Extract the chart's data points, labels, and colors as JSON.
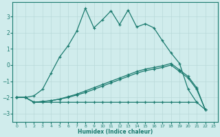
{
  "xlabel": "Humidex (Indice chaleur)",
  "background_color": "#d0ecec",
  "grid_color": "#b8d8d8",
  "line_color": "#1a7a6e",
  "xlim": [
    -0.5,
    23.5
  ],
  "ylim": [
    -3.5,
    3.9
  ],
  "yticks": [
    -3,
    -2,
    -1,
    0,
    1,
    2,
    3
  ],
  "xticks": [
    0,
    1,
    2,
    3,
    4,
    5,
    6,
    7,
    8,
    9,
    10,
    11,
    12,
    13,
    14,
    15,
    16,
    17,
    18,
    19,
    20,
    21,
    22,
    23
  ],
  "s1_x": [
    0,
    1,
    2,
    3,
    4,
    5,
    6,
    7,
    8,
    9,
    10,
    11,
    12,
    13,
    14,
    15,
    16,
    17,
    18,
    19,
    20,
    21
  ],
  "s1_y": [
    -2.0,
    -2.0,
    -1.9,
    -1.5,
    -0.5,
    0.5,
    1.2,
    2.1,
    3.5,
    2.3,
    2.8,
    3.35,
    2.5,
    3.4,
    2.35,
    2.55,
    2.3,
    1.5,
    0.75,
    0.1,
    -1.5,
    -2.3
  ],
  "s2_x": [
    0,
    1,
    2,
    3,
    4,
    5,
    6,
    7,
    8,
    9,
    10,
    11,
    12,
    13,
    14,
    15,
    16,
    17,
    18,
    19,
    20,
    21,
    22
  ],
  "s2_y": [
    -2.0,
    -2.0,
    -2.3,
    -2.3,
    -2.3,
    -2.3,
    -2.3,
    -2.3,
    -2.3,
    -2.3,
    -2.3,
    -2.3,
    -2.3,
    -2.3,
    -2.3,
    -2.3,
    -2.3,
    -2.3,
    -2.3,
    -2.3,
    -2.3,
    -2.3,
    -2.75
  ],
  "s3_x": [
    0,
    1,
    2,
    3,
    4,
    5,
    6,
    7,
    8,
    9,
    10,
    11,
    12,
    13,
    14,
    15,
    16,
    17,
    18,
    19,
    20,
    21,
    22
  ],
  "s3_y": [
    -2.0,
    -2.0,
    -2.3,
    -2.25,
    -2.2,
    -2.1,
    -2.0,
    -1.85,
    -1.7,
    -1.5,
    -1.3,
    -1.1,
    -0.9,
    -0.7,
    -0.5,
    -0.35,
    -0.25,
    -0.15,
    0.0,
    -0.4,
    -0.8,
    -1.5,
    -2.75
  ],
  "s4_x": [
    0,
    1,
    2,
    3,
    4,
    5,
    6,
    7,
    8,
    9,
    10,
    11,
    12,
    13,
    14,
    15,
    16,
    17,
    18,
    19,
    20,
    21,
    22
  ],
  "s4_y": [
    -2.0,
    -2.0,
    -2.3,
    -2.25,
    -2.2,
    -2.1,
    -1.95,
    -1.8,
    -1.6,
    -1.4,
    -1.2,
    -1.0,
    -0.8,
    -0.6,
    -0.4,
    -0.25,
    -0.15,
    -0.05,
    0.1,
    -0.3,
    -0.7,
    -1.4,
    -2.75
  ]
}
